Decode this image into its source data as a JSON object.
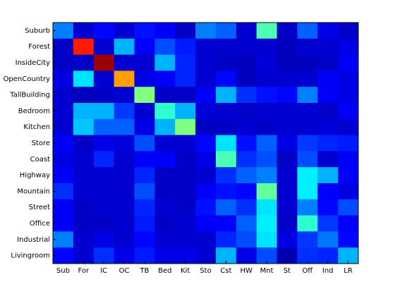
{
  "chart_data": {
    "type": "heatmap",
    "colormap": "jet",
    "clim": [
      0,
      1
    ],
    "x_categories": [
      "Sub",
      "For",
      "IC",
      "OC",
      "TB",
      "Bed",
      "Kit",
      "Sto",
      "Cst",
      "HW",
      "Mnt",
      "St",
      "Off",
      "Ind",
      "LR"
    ],
    "y_categories": [
      "Suburb",
      "Forest",
      "InsideCity",
      "OpenCountry",
      "TallBuilding",
      "Bedroom",
      "Kitchen",
      "Store",
      "Coast",
      "Highway",
      "Mountain",
      "Street",
      "Office",
      "Industrial",
      "Livingroom"
    ],
    "values": [
      [
        0.25,
        0.08,
        0.13,
        0.08,
        0.14,
        0.12,
        0.07,
        0.25,
        0.22,
        0.08,
        0.45,
        0.07,
        0.22,
        0.1,
        0.07
      ],
      [
        0.07,
        0.85,
        0.08,
        0.3,
        0.12,
        0.2,
        0.15,
        0.08,
        0.08,
        0.08,
        0.08,
        0.06,
        0.08,
        0.08,
        0.1
      ],
      [
        0.07,
        0.07,
        0.97,
        0.08,
        0.08,
        0.3,
        0.16,
        0.08,
        0.07,
        0.06,
        0.09,
        0.06,
        0.06,
        0.07,
        0.12
      ],
      [
        0.1,
        0.35,
        0.08,
        0.72,
        0.1,
        0.12,
        0.16,
        0.08,
        0.13,
        0.06,
        0.08,
        0.08,
        0.08,
        0.12,
        0.1
      ],
      [
        0.08,
        0.06,
        0.07,
        0.08,
        0.5,
        0.07,
        0.07,
        0.12,
        0.3,
        0.17,
        0.14,
        0.13,
        0.25,
        0.12,
        0.1
      ],
      [
        0.08,
        0.3,
        0.3,
        0.18,
        0.08,
        0.42,
        0.3,
        0.09,
        0.08,
        0.07,
        0.08,
        0.08,
        0.08,
        0.07,
        0.12
      ],
      [
        0.08,
        0.32,
        0.22,
        0.22,
        0.1,
        0.3,
        0.5,
        0.07,
        0.07,
        0.08,
        0.07,
        0.08,
        0.08,
        0.09,
        0.08
      ],
      [
        0.12,
        0.07,
        0.1,
        0.09,
        0.2,
        0.08,
        0.08,
        0.13,
        0.35,
        0.14,
        0.22,
        0.1,
        0.18,
        0.16,
        0.15
      ],
      [
        0.1,
        0.08,
        0.16,
        0.08,
        0.12,
        0.12,
        0.07,
        0.1,
        0.45,
        0.17,
        0.2,
        0.07,
        0.2,
        0.08,
        0.12
      ],
      [
        0.12,
        0.08,
        0.08,
        0.08,
        0.16,
        0.07,
        0.07,
        0.08,
        0.17,
        0.22,
        0.25,
        0.08,
        0.36,
        0.3,
        0.12
      ],
      [
        0.17,
        0.08,
        0.08,
        0.08,
        0.2,
        0.07,
        0.07,
        0.12,
        0.14,
        0.13,
        0.47,
        0.08,
        0.36,
        0.12,
        0.1
      ],
      [
        0.12,
        0.07,
        0.08,
        0.08,
        0.16,
        0.08,
        0.07,
        0.14,
        0.22,
        0.17,
        0.35,
        0.08,
        0.25,
        0.13,
        0.2
      ],
      [
        0.12,
        0.07,
        0.07,
        0.08,
        0.15,
        0.07,
        0.08,
        0.12,
        0.12,
        0.22,
        0.36,
        0.07,
        0.42,
        0.18,
        0.12
      ],
      [
        0.25,
        0.08,
        0.1,
        0.08,
        0.13,
        0.08,
        0.08,
        0.08,
        0.16,
        0.2,
        0.35,
        0.1,
        0.18,
        0.24,
        0.13
      ],
      [
        0.13,
        0.08,
        0.17,
        0.1,
        0.15,
        0.1,
        0.1,
        0.08,
        0.3,
        0.1,
        0.2,
        0.05,
        0.17,
        0.16,
        0.3
      ]
    ]
  }
}
